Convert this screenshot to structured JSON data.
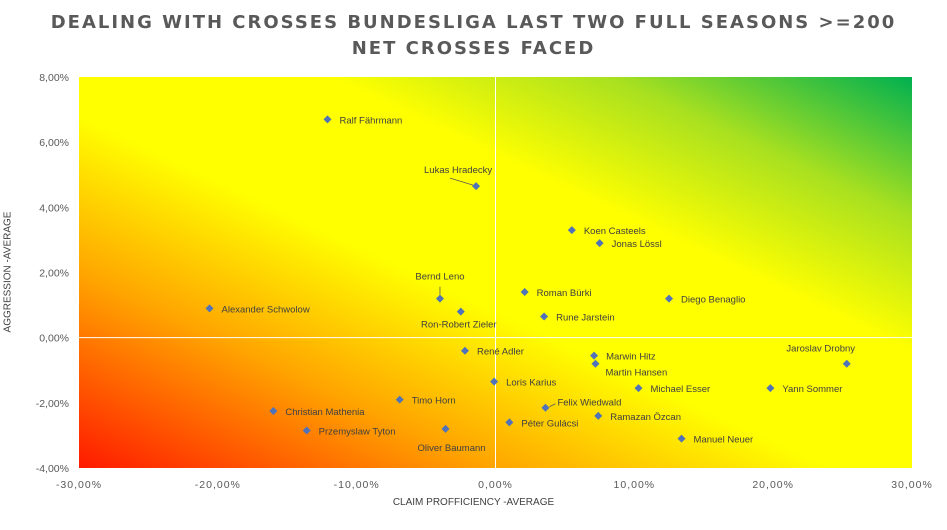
{
  "title_line1": "DEALING WITH CROSSES BUNDESLIGA LAST TWO FULL SEASONS >=200",
  "title_line2": "NET CROSSES FACED",
  "xlabel": "CLAIM PROFFICIENCY -AVERAGE",
  "ylabel": "AGGRESSION -AVERAGE",
  "colors": {
    "marker": "#4f72b8",
    "gradient_red": "#ff1a00",
    "gradient_yellow": "#ffff00",
    "gradient_green": "#00b050",
    "text": "#595959",
    "gridline": "#ffffff"
  },
  "chart_data": {
    "type": "scatter",
    "title": "DEALING WITH CROSSES BUNDESLIGA LAST TWO FULL SEASONS >=200 NET CROSSES FACED",
    "xlabel": "CLAIM PROFFICIENCY -AVERAGE",
    "ylabel": "AGGRESSION -AVERAGE",
    "xlim": [
      -30,
      30
    ],
    "ylim": [
      -4,
      8
    ],
    "xticks": [
      "-30,00%",
      "-20,00%",
      "-10,00%",
      "0,00%",
      "10,00%",
      "20,00%",
      "30,00%"
    ],
    "xtick_values": [
      -30,
      -20,
      -10,
      0,
      10,
      20,
      30
    ],
    "yticks": [
      "-4,00%",
      "-2,00%",
      "0,00%",
      "2,00%",
      "4,00%",
      "6,00%",
      "8,00%"
    ],
    "ytick_values": [
      -4,
      -2,
      0,
      2,
      4,
      6,
      8
    ],
    "points": [
      {
        "name": "Ralf Fährmann",
        "x": -12.1,
        "y": 6.7
      },
      {
        "name": "Lukas Hradecky",
        "x": -1.4,
        "y": 4.65
      },
      {
        "name": "Koen Casteels",
        "x": 5.5,
        "y": 3.3
      },
      {
        "name": "Jonas Lössl",
        "x": 7.5,
        "y": 2.9
      },
      {
        "name": "Bernd Leno",
        "x": -4.0,
        "y": 1.2
      },
      {
        "name": "Roman Bürki",
        "x": 2.1,
        "y": 1.4
      },
      {
        "name": "Diego Benaglio",
        "x": 12.5,
        "y": 1.2
      },
      {
        "name": "Alexander Schwolow",
        "x": -20.6,
        "y": 0.9
      },
      {
        "name": "Ron-Robert Zieler",
        "x": -2.5,
        "y": 0.8
      },
      {
        "name": "Rune Jarstein",
        "x": 3.5,
        "y": 0.65
      },
      {
        "name": "René Adler",
        "x": -2.2,
        "y": -0.4
      },
      {
        "name": "Marwin Hitz",
        "x": 7.1,
        "y": -0.55
      },
      {
        "name": "Martin Hansen",
        "x": 7.2,
        "y": -0.8
      },
      {
        "name": "Jaroslav Drobny",
        "x": 25.3,
        "y": -0.8
      },
      {
        "name": "Loris Karius",
        "x": -0.1,
        "y": -1.35
      },
      {
        "name": "Michael Esser",
        "x": 10.3,
        "y": -1.55
      },
      {
        "name": "Yann Sommer",
        "x": 19.8,
        "y": -1.55
      },
      {
        "name": "Timo Horn",
        "x": -6.9,
        "y": -1.9
      },
      {
        "name": "Felix Wiedwald",
        "x": 3.6,
        "y": -2.15
      },
      {
        "name": "Christian Mathenia",
        "x": -16.0,
        "y": -2.25
      },
      {
        "name": "Ramazan Özcan",
        "x": 7.4,
        "y": -2.4
      },
      {
        "name": "Péter Gulácsi",
        "x": 1.0,
        "y": -2.6
      },
      {
        "name": "Przemyslaw Tyton",
        "x": -13.6,
        "y": -2.85
      },
      {
        "name": "Oliver Baumann",
        "x": -3.6,
        "y": -2.8
      },
      {
        "name": "Manuel Neuer",
        "x": 13.4,
        "y": -3.1
      }
    ]
  }
}
